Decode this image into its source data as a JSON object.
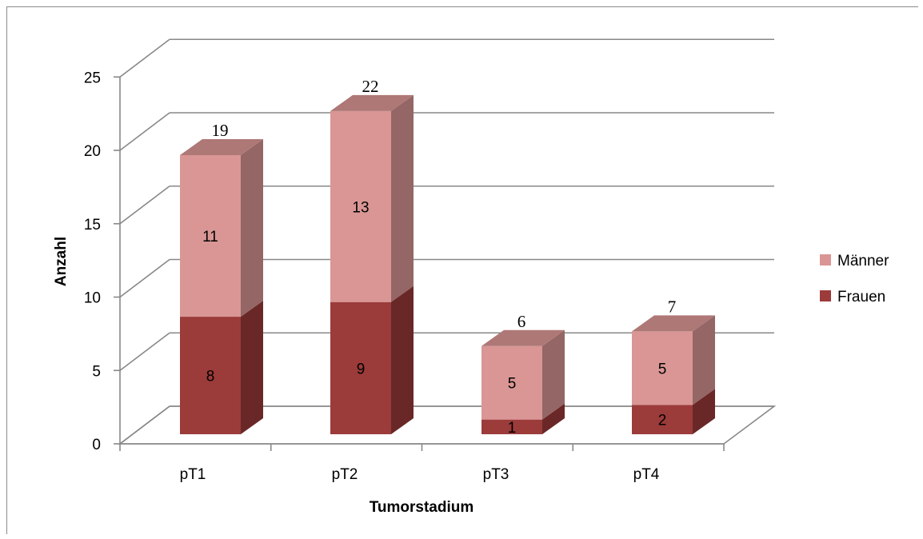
{
  "chart_data": {
    "type": "bar",
    "stacked": true,
    "style": "3d-column",
    "categories": [
      "pT1",
      "pT2",
      "pT3",
      "pT4"
    ],
    "series": [
      {
        "name": "Frauen",
        "values": [
          8,
          9,
          1,
          2
        ],
        "color": "#9b3b3a"
      },
      {
        "name": "Männer",
        "values": [
          11,
          13,
          5,
          5
        ],
        "color": "#d99694"
      }
    ],
    "totals": [
      "19",
      "22",
      "6",
      "7"
    ],
    "xlabel": "Tumorstadium",
    "ylabel": "Anzahl",
    "ylim": [
      0,
      25
    ],
    "yticks": [
      "0",
      "5",
      "10",
      "15",
      "20",
      "25"
    ],
    "grid": true,
    "legend_position": "right"
  }
}
